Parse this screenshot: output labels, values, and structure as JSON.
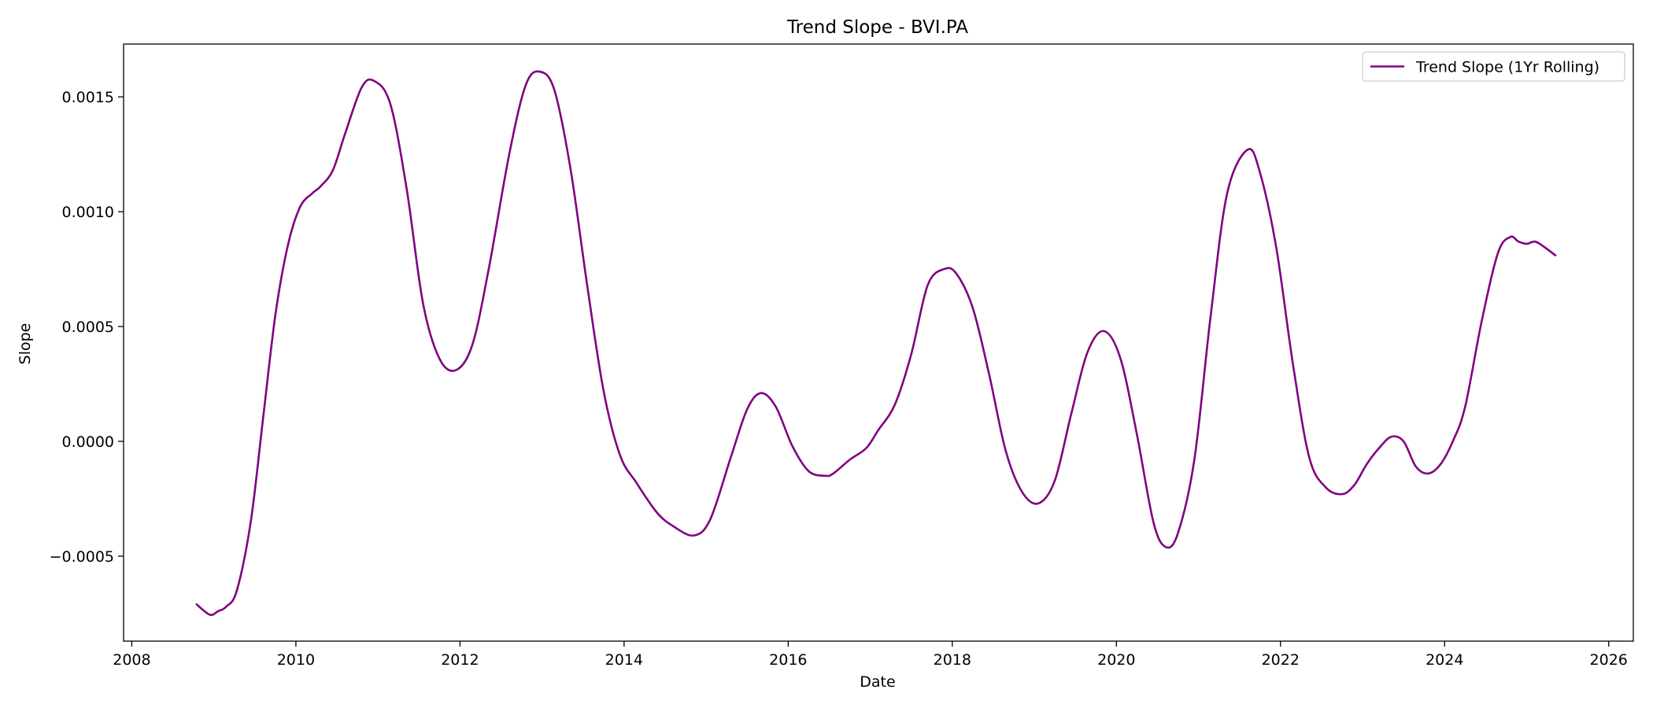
{
  "chart_data": {
    "type": "line",
    "title": "Trend Slope - BVI.PA",
    "xlabel": "Date",
    "ylabel": "Slope",
    "xlim": [
      2007.9,
      2026.3
    ],
    "ylim": [
      -0.00087,
      0.00173
    ],
    "xticks": [
      2008,
      2010,
      2012,
      2014,
      2016,
      2018,
      2020,
      2022,
      2024,
      2026
    ],
    "xtick_labels": [
      "2008",
      "2010",
      "2012",
      "2014",
      "2016",
      "2018",
      "2020",
      "2022",
      "2024",
      "2026"
    ],
    "yticks": [
      -0.0005,
      0.0,
      0.0005,
      0.001,
      0.0015
    ],
    "ytick_labels": [
      "−0.0005",
      "0.0000",
      "0.0005",
      "0.0010",
      "0.0015"
    ],
    "grid": false,
    "legend_position": "top-right",
    "series": [
      {
        "name": "Trend Slope (1Yr Rolling)",
        "color": "#800080",
        "x": [
          2008.79,
          2008.95,
          2009.05,
          2009.15,
          2009.28,
          2009.45,
          2009.6,
          2009.75,
          2009.9,
          2010.05,
          2010.2,
          2010.3,
          2010.45,
          2010.6,
          2010.8,
          2010.95,
          2011.15,
          2011.35,
          2011.55,
          2011.75,
          2011.95,
          2012.15,
          2012.35,
          2012.6,
          2012.8,
          2012.97,
          2013.15,
          2013.35,
          2013.55,
          2013.75,
          2013.95,
          2014.15,
          2014.4,
          2014.6,
          2014.85,
          2015.05,
          2015.3,
          2015.5,
          2015.67,
          2015.85,
          2016.05,
          2016.25,
          2016.45,
          2016.55,
          2016.75,
          2016.95,
          2017.1,
          2017.3,
          2017.5,
          2017.7,
          2017.9,
          2018.05,
          2018.25,
          2018.45,
          2018.65,
          2018.85,
          2019.05,
          2019.25,
          2019.45,
          2019.65,
          2019.85,
          2020.05,
          2020.25,
          2020.45,
          2020.6,
          2020.75,
          2020.95,
          2021.15,
          2021.35,
          2021.6,
          2021.75,
          2021.95,
          2022.15,
          2022.35,
          2022.55,
          2022.75,
          2022.9,
          2023.05,
          2023.2,
          2023.35,
          2023.5,
          2023.65,
          2023.8,
          2023.95,
          2024.1,
          2024.25,
          2024.45,
          2024.65,
          2024.8,
          2024.9,
          2025.0,
          2025.1,
          2025.2,
          2025.35
        ],
        "y": [
          -0.00071,
          -0.000755,
          -0.00074,
          -0.00072,
          -0.00065,
          -0.00035,
          0.0001,
          0.00055,
          0.00085,
          0.00102,
          0.00108,
          0.00111,
          0.00118,
          0.00134,
          0.00154,
          0.00157,
          0.00147,
          0.0011,
          0.0006,
          0.00036,
          0.00031,
          0.00042,
          0.00075,
          0.00125,
          0.00155,
          0.00161,
          0.00153,
          0.00118,
          0.00068,
          0.00022,
          -6e-05,
          -0.00018,
          -0.00031,
          -0.00037,
          -0.00041,
          -0.00034,
          -7e-05,
          0.00014,
          0.00021,
          0.00015,
          -2e-05,
          -0.00013,
          -0.00015,
          -0.00014,
          -8e-05,
          -3e-05,
          5e-05,
          0.00016,
          0.00038,
          0.00068,
          0.00075,
          0.00073,
          0.00058,
          0.00029,
          -4e-05,
          -0.00022,
          -0.00027,
          -0.00017,
          0.00012,
          0.00039,
          0.00048,
          0.00036,
          3e-05,
          -0.00035,
          -0.00046,
          -0.0004,
          -8e-05,
          0.00055,
          0.00108,
          0.00127,
          0.00117,
          0.00084,
          0.00034,
          -7e-05,
          -0.0002,
          -0.00023,
          -0.00019,
          -0.0001,
          -3e-05,
          2e-05,
          0.0,
          -0.00011,
          -0.00014,
          -0.0001,
          0.0,
          0.00015,
          0.00052,
          0.00082,
          0.00089,
          0.00087,
          0.00086,
          0.00087,
          0.00085,
          0.00081
        ]
      }
    ]
  }
}
